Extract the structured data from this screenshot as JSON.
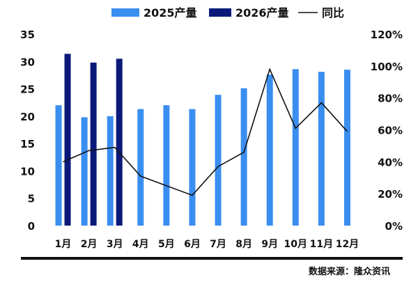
{
  "chart_data": {
    "type": "bar",
    "title": "",
    "categories": [
      "1月",
      "2月",
      "3月",
      "4月",
      "5月",
      "6月",
      "7月",
      "8月",
      "9月",
      "10月",
      "11月",
      "12月"
    ],
    "series": [
      {
        "name": "2025产量",
        "type": "bar",
        "axis": "left",
        "color": "#3a8ef0",
        "values": [
          22,
          19.8,
          20,
          21.3,
          22,
          21.3,
          23.9,
          25.1,
          27.6,
          28.6,
          28.1,
          28.5
        ]
      },
      {
        "name": "2026产量",
        "type": "bar",
        "axis": "left",
        "color": "#0b1a7a",
        "values": [
          31.4,
          29.8,
          30.5,
          null,
          null,
          null,
          null,
          null,
          null,
          null,
          null,
          null
        ]
      },
      {
        "name": "同比",
        "type": "line",
        "axis": "right",
        "color": "#111111",
        "values": [
          40,
          47,
          49,
          31,
          25,
          19,
          37,
          46,
          98,
          61,
          77,
          59
        ]
      }
    ],
    "y_left": {
      "min": 0,
      "max": 35,
      "ticks": [
        "0",
        "5",
        "10",
        "15",
        "20",
        "25",
        "30",
        "35"
      ]
    },
    "y_right": {
      "min": 0,
      "max": 120,
      "ticks": [
        "0%",
        "20%",
        "40%",
        "60%",
        "80%",
        "100%",
        "120%"
      ]
    },
    "legend": {
      "position": "top-center"
    },
    "grid": false
  },
  "source": "数据来源：隆众资讯"
}
